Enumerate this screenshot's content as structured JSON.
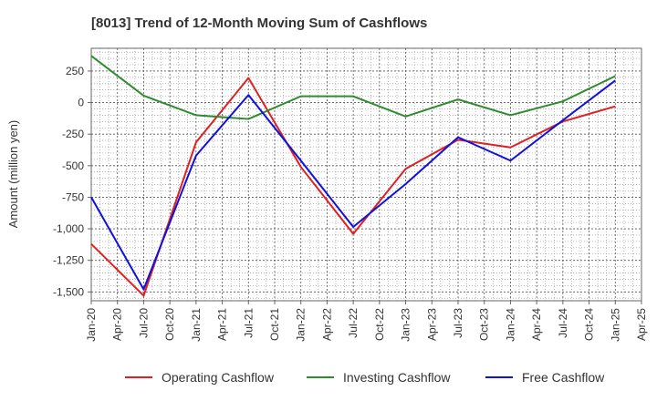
{
  "chart_data": {
    "type": "line",
    "title": "[8013]  Trend of 12-Month Moving Sum of Cashflows",
    "xlabel": "",
    "ylabel": "Amount (million yen)",
    "categories": [
      "Jan-20",
      "Apr-20",
      "Jul-20",
      "Oct-20",
      "Jan-21",
      "Apr-21",
      "Jul-21",
      "Oct-21",
      "Jan-22",
      "Apr-22",
      "Jul-22",
      "Oct-22",
      "Jan-23",
      "Apr-23",
      "Jul-23",
      "Oct-23",
      "Jan-24",
      "Apr-24",
      "Jul-24",
      "Oct-24",
      "Jan-25",
      "Apr-25"
    ],
    "yticks": [
      250,
      0,
      -250,
      -500,
      -750,
      -1000,
      -1250,
      -1500
    ],
    "ytick_labels": [
      "250",
      "0",
      "-250",
      "-500",
      "-750",
      "-1,000",
      "-1,250",
      "-1,500"
    ],
    "ylim": [
      -1570,
      430
    ],
    "grid": true,
    "legend_position": "bottom",
    "series": [
      {
        "name": "Operating Cashflow",
        "color": "#e02020",
        "x": [
          "Jan-20",
          "Jul-20",
          "Jan-21",
          "Jul-21",
          "Jan-22",
          "Jul-22",
          "Jan-23",
          "Jul-23",
          "Jan-24",
          "Jul-24",
          "Jan-25"
        ],
        "values": [
          -1120,
          -1530,
          -315,
          195,
          -510,
          -1040,
          -525,
          -295,
          -355,
          -150,
          -30
        ]
      },
      {
        "name": "Investing Cashflow",
        "color": "#2e8b2e",
        "x": [
          "Jan-20",
          "Jul-20",
          "Jan-21",
          "Jul-21",
          "Jan-22",
          "Jul-22",
          "Jan-23",
          "Jul-23",
          "Jan-24",
          "Jul-24",
          "Jan-25"
        ],
        "values": [
          370,
          55,
          -100,
          -130,
          50,
          50,
          -110,
          25,
          -100,
          10,
          210
        ]
      },
      {
        "name": "Free Cashflow",
        "color": "#1010e0",
        "x": [
          "Jan-20",
          "Jul-20",
          "Jan-21",
          "Jul-21",
          "Jan-22",
          "Jul-22",
          "Jan-23",
          "Jul-23",
          "Jan-24",
          "Jul-24",
          "Jan-25"
        ],
        "values": [
          -750,
          -1480,
          -420,
          60,
          -460,
          -985,
          -645,
          -275,
          -460,
          -140,
          175
        ]
      }
    ]
  }
}
